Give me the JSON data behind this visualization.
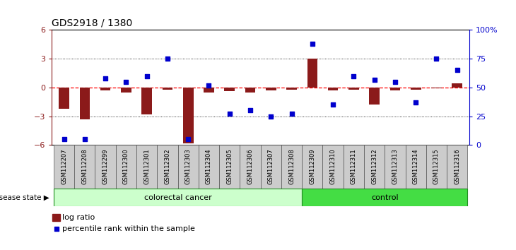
{
  "title": "GDS2918 / 1380",
  "samples": [
    "GSM112207",
    "GSM112208",
    "GSM112299",
    "GSM112300",
    "GSM112301",
    "GSM112302",
    "GSM112303",
    "GSM112304",
    "GSM112305",
    "GSM112306",
    "GSM112307",
    "GSM112308",
    "GSM112309",
    "GSM112310",
    "GSM112311",
    "GSM112312",
    "GSM112313",
    "GSM112314",
    "GSM112315",
    "GSM112316"
  ],
  "log_ratio": [
    -2.2,
    -3.3,
    -0.3,
    -0.5,
    -2.8,
    -0.2,
    -5.8,
    -0.5,
    -0.4,
    -0.5,
    -0.3,
    -0.2,
    3.0,
    -0.3,
    -0.2,
    -1.8,
    -0.3,
    -0.2,
    -0.1,
    0.4
  ],
  "percentile_rank": [
    5,
    5,
    58,
    55,
    60,
    75,
    5,
    52,
    27,
    30,
    25,
    27,
    88,
    35,
    60,
    57,
    55,
    37,
    75,
    65
  ],
  "colorectal_count": 12,
  "control_count": 8,
  "bar_color": "#8B1A1A",
  "dot_color": "#0000CD",
  "background_color": "#ffffff",
  "ylim_left": [
    -6,
    6
  ],
  "ylim_right": [
    0,
    100
  ],
  "yticks_left": [
    -6,
    -3,
    0,
    3,
    6
  ],
  "yticks_right": [
    0,
    25,
    50,
    75,
    100
  ],
  "ytick_labels_right": [
    "0",
    "25",
    "50",
    "75",
    "100%"
  ],
  "colorectal_label": "colorectal cancer",
  "control_label": "control",
  "disease_state_label": "disease state",
  "legend_bar": "log ratio",
  "legend_dot": "percentile rank within the sample",
  "colorectal_color": "#CCFFCC",
  "control_color": "#44DD44",
  "colorectal_edge": "#228B22",
  "control_edge": "#228B22",
  "xtick_box_color": "#CCCCCC",
  "xtick_box_edge": "#555555"
}
